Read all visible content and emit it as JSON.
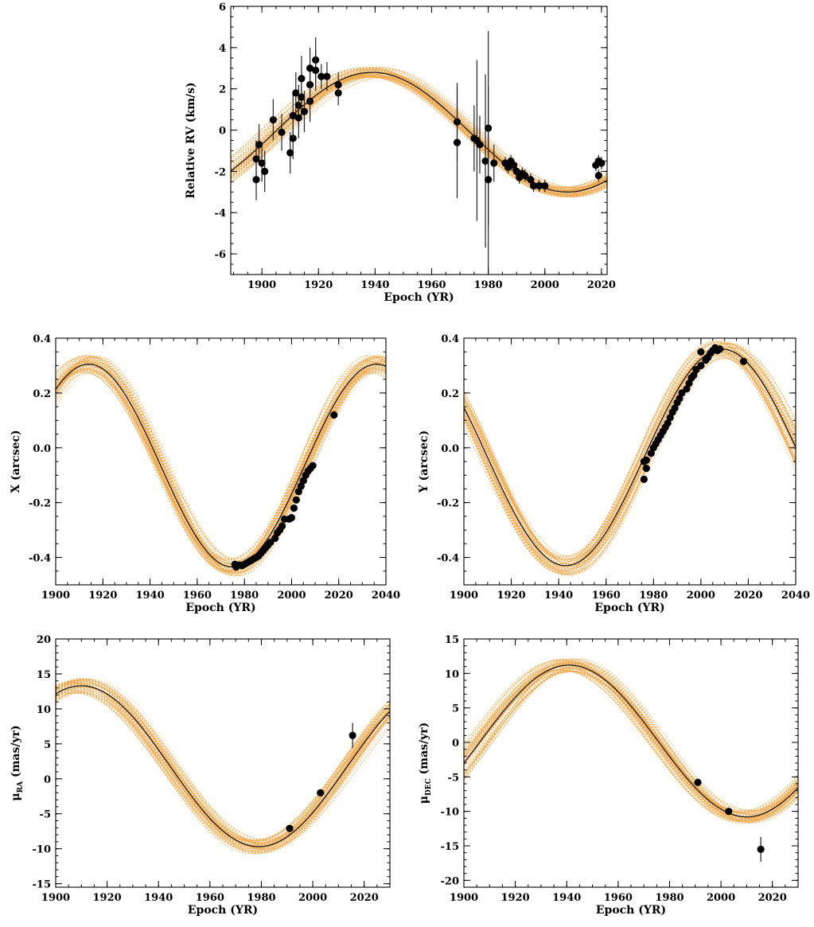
{
  "colors": {
    "mc_orbits": "#f0a13c",
    "best_fit": "#1a1a1a",
    "points": "#000000"
  },
  "chart_data": [
    {
      "id": "rv",
      "type": "scatter",
      "xlabel": "Epoch (YR)",
      "ylabel": "Relative RV (km/s)",
      "ylabel_sub": "",
      "xlim": [
        1889,
        2022
      ],
      "ylim": [
        -7,
        6
      ],
      "xticks": [
        1900,
        1920,
        1940,
        1960,
        1980,
        2000,
        2020
      ],
      "yticks": [
        -6,
        -4,
        -2,
        0,
        2,
        4,
        6
      ],
      "xminor": 5,
      "yminor": 0.5,
      "model": {
        "period": 138,
        "t_min": 2008,
        "amp_min": -3.0,
        "amp_max": 2.8,
        "slope_at_max": 0.0
      },
      "points": [
        {
          "x": 1898,
          "y": -2.4,
          "err": 1.0
        },
        {
          "x": 1898,
          "y": -1.4,
          "err": 0.9
        },
        {
          "x": 1899,
          "y": -0.7,
          "err": 1.0
        },
        {
          "x": 1900,
          "y": -1.6,
          "err": 0.9
        },
        {
          "x": 1901,
          "y": -2.0,
          "err": 1.0
        },
        {
          "x": 1904,
          "y": 0.5,
          "err": 1.0
        },
        {
          "x": 1907,
          "y": -0.1,
          "err": 0.9
        },
        {
          "x": 1910,
          "y": -1.1,
          "err": 1.0
        },
        {
          "x": 1911,
          "y": -0.4,
          "err": 1.0
        },
        {
          "x": 1911,
          "y": 0.7,
          "err": 1.1
        },
        {
          "x": 1912,
          "y": 1.8,
          "err": 1.0
        },
        {
          "x": 1913,
          "y": 1.2,
          "err": 1.0
        },
        {
          "x": 1913,
          "y": 0.6,
          "err": 1.0
        },
        {
          "x": 1914,
          "y": 2.5,
          "err": 1.1
        },
        {
          "x": 1914,
          "y": 1.6,
          "err": 1.0
        },
        {
          "x": 1915,
          "y": 0.9,
          "err": 1.0
        },
        {
          "x": 1917,
          "y": 1.4,
          "err": 1.0
        },
        {
          "x": 1917,
          "y": 2.2,
          "err": 1.0
        },
        {
          "x": 1917,
          "y": 3.0,
          "err": 1.0
        },
        {
          "x": 1919,
          "y": 3.4,
          "err": 1.1
        },
        {
          "x": 1919,
          "y": 2.9,
          "err": 1.0
        },
        {
          "x": 1921,
          "y": 2.6,
          "err": 0.6
        },
        {
          "x": 1923,
          "y": 2.6,
          "err": 0.7
        },
        {
          "x": 1927,
          "y": 1.8,
          "err": 0.6
        },
        {
          "x": 1927,
          "y": 2.2,
          "err": 0.6
        },
        {
          "x": 1969,
          "y": 0.4,
          "err": 1.9
        },
        {
          "x": 1969,
          "y": -0.6,
          "err": 2.7
        },
        {
          "x": 1975,
          "y": -0.4,
          "err": 1.6
        },
        {
          "x": 1976,
          "y": -0.5,
          "err": 3.9
        },
        {
          "x": 1977,
          "y": -0.7,
          "err": 1.4
        },
        {
          "x": 1979,
          "y": -1.5,
          "err": 4.2
        },
        {
          "x": 1980,
          "y": 0.1,
          "err": 4.7
        },
        {
          "x": 1980,
          "y": -2.4,
          "err": 4.5
        },
        {
          "x": 1982,
          "y": -1.6,
          "err": 0.9
        },
        {
          "x": 1986,
          "y": -1.6,
          "err": 0.3
        },
        {
          "x": 1987,
          "y": -1.8,
          "err": 0.3
        },
        {
          "x": 1988,
          "y": -1.5,
          "err": 0.3
        },
        {
          "x": 1989,
          "y": -1.7,
          "err": 0.3
        },
        {
          "x": 1990,
          "y": -2.0,
          "err": 0.3
        },
        {
          "x": 1991,
          "y": -2.3,
          "err": 0.3
        },
        {
          "x": 1992,
          "y": -2.1,
          "err": 0.3
        },
        {
          "x": 1993,
          "y": -2.2,
          "err": 0.3
        },
        {
          "x": 1995,
          "y": -2.4,
          "err": 0.3
        },
        {
          "x": 1996,
          "y": -2.7,
          "err": 0.3
        },
        {
          "x": 1998,
          "y": -2.7,
          "err": 0.3
        },
        {
          "x": 2000,
          "y": -2.7,
          "err": 0.3
        },
        {
          "x": 2018,
          "y": -1.7,
          "err": 0.3
        },
        {
          "x": 2019,
          "y": -1.5,
          "err": 0.3
        },
        {
          "x": 2019,
          "y": -2.2,
          "err": 0.3
        },
        {
          "x": 2020,
          "y": -1.6,
          "err": 0.3
        }
      ]
    },
    {
      "id": "x",
      "type": "scatter",
      "xlabel": "Epoch (YR)",
      "ylabel": "X (arcsec)",
      "ylabel_sub": "",
      "xlim": [
        1900,
        2040
      ],
      "ylim": [
        -0.5,
        0.4
      ],
      "xticks": [
        1900,
        1920,
        1940,
        1960,
        1980,
        2000,
        2020,
        2040
      ],
      "yticks": [
        -0.4,
        -0.2,
        0.0,
        0.2,
        0.4
      ],
      "xtick_labels": [
        "1900",
        "1920",
        "1940",
        "1960",
        "1980",
        "2000",
        "2020",
        "2040"
      ],
      "ytick_labels": [
        "-0.4",
        "-0.2",
        "0.0",
        "0.2",
        "0.4"
      ],
      "xminor": 5,
      "yminor": 0.05,
      "model": {
        "period": 122,
        "t_min": 1975,
        "amp_min": -0.435,
        "amp_max": 0.305
      },
      "points": [
        {
          "x": 1976,
          "y": -0.425
        },
        {
          "x": 1976.5,
          "y": -0.435
        },
        {
          "x": 1977,
          "y": -0.43
        },
        {
          "x": 1978,
          "y": -0.428
        },
        {
          "x": 1979,
          "y": -0.43
        },
        {
          "x": 1980,
          "y": -0.425
        },
        {
          "x": 1981,
          "y": -0.42
        },
        {
          "x": 1982,
          "y": -0.415
        },
        {
          "x": 1983,
          "y": -0.41
        },
        {
          "x": 1984,
          "y": -0.405
        },
        {
          "x": 1985,
          "y": -0.4
        },
        {
          "x": 1986,
          "y": -0.395
        },
        {
          "x": 1987,
          "y": -0.385
        },
        {
          "x": 1988,
          "y": -0.375
        },
        {
          "x": 1989,
          "y": -0.365
        },
        {
          "x": 1990,
          "y": -0.355
        },
        {
          "x": 1991,
          "y": -0.345
        },
        {
          "x": 1993,
          "y": -0.33
        },
        {
          "x": 1994,
          "y": -0.31
        },
        {
          "x": 1995,
          "y": -0.3
        },
        {
          "x": 1996,
          "y": -0.285
        },
        {
          "x": 1997,
          "y": -0.26
        },
        {
          "x": 1999,
          "y": -0.26
        },
        {
          "x": 2000,
          "y": -0.255
        },
        {
          "x": 2001,
          "y": -0.22
        },
        {
          "x": 2002,
          "y": -0.19
        },
        {
          "x": 2003,
          "y": -0.16
        },
        {
          "x": 2004,
          "y": -0.14
        },
        {
          "x": 2005,
          "y": -0.12
        },
        {
          "x": 2006,
          "y": -0.1
        },
        {
          "x": 2007,
          "y": -0.085
        },
        {
          "x": 2008,
          "y": -0.075
        },
        {
          "x": 2009,
          "y": -0.065
        },
        {
          "x": 2018,
          "y": 0.12
        }
      ]
    },
    {
      "id": "y",
      "type": "scatter",
      "xlabel": "Epoch (YR)",
      "ylabel": "Y (arcsec)",
      "ylabel_sub": "",
      "xlim": [
        1900,
        2040
      ],
      "ylim": [
        -0.5,
        0.4
      ],
      "xticks": [
        1900,
        1920,
        1940,
        1960,
        1980,
        2000,
        2020,
        2040
      ],
      "yticks": [
        -0.4,
        -0.2,
        0.0,
        0.2,
        0.4
      ],
      "xtick_labels": [
        "1900",
        "1920",
        "1940",
        "1960",
        "1980",
        "2000",
        "2020",
        "2040"
      ],
      "ytick_labels": [
        "-0.4",
        "-0.2",
        "0.0",
        "0.2",
        "0.4"
      ],
      "xminor": 5,
      "yminor": 0.05,
      "model": {
        "period": 132,
        "t_min": 1943,
        "amp_min": -0.43,
        "amp_max": 0.36
      },
      "points": [
        {
          "x": 1976,
          "y": -0.115
        },
        {
          "x": 1976,
          "y": -0.05
        },
        {
          "x": 1977,
          "y": -0.075
        },
        {
          "x": 1977,
          "y": -0.045
        },
        {
          "x": 1979,
          "y": -0.02
        },
        {
          "x": 1980,
          "y": 0.0
        },
        {
          "x": 1981,
          "y": 0.015
        },
        {
          "x": 1982,
          "y": 0.03
        },
        {
          "x": 1983,
          "y": 0.045
        },
        {
          "x": 1984,
          "y": 0.06
        },
        {
          "x": 1985,
          "y": 0.075
        },
        {
          "x": 1986,
          "y": 0.09
        },
        {
          "x": 1987,
          "y": 0.11
        },
        {
          "x": 1988,
          "y": 0.13
        },
        {
          "x": 1989,
          "y": 0.145
        },
        {
          "x": 1990,
          "y": 0.165
        },
        {
          "x": 1991,
          "y": 0.18
        },
        {
          "x": 1992,
          "y": 0.2
        },
        {
          "x": 1994,
          "y": 0.215
        },
        {
          "x": 1995,
          "y": 0.235
        },
        {
          "x": 1996,
          "y": 0.255
        },
        {
          "x": 1997,
          "y": 0.265
        },
        {
          "x": 1998,
          "y": 0.285
        },
        {
          "x": 2000,
          "y": 0.3
        },
        {
          "x": 2000,
          "y": 0.35
        },
        {
          "x": 2002,
          "y": 0.32
        },
        {
          "x": 2003,
          "y": 0.33
        },
        {
          "x": 2004,
          "y": 0.345
        },
        {
          "x": 2005,
          "y": 0.355
        },
        {
          "x": 2006,
          "y": 0.365
        },
        {
          "x": 2007,
          "y": 0.355
        },
        {
          "x": 2008,
          "y": 0.36
        },
        {
          "x": 2018,
          "y": 0.315
        }
      ]
    },
    {
      "id": "pmra",
      "type": "scatter",
      "xlabel": "Epoch (YR)",
      "ylabel": "μ",
      "ylabel_sub": "RA",
      "ylabel_units": " (mas/yr)",
      "xlim": [
        1900,
        2030
      ],
      "ylim": [
        -15.5,
        20
      ],
      "xticks": [
        1900,
        1920,
        1940,
        1960,
        1980,
        2000,
        2020
      ],
      "yticks": [
        -15,
        -10,
        -5,
        0,
        5,
        10,
        15,
        20
      ],
      "xminor": 5,
      "yminor": 1,
      "model": {
        "period": 138,
        "t_min": 1979,
        "amp_min": -9.7,
        "amp_max": 13.3
      },
      "points": [
        {
          "x": 1991,
          "y": -7.1,
          "err": 0.3
        },
        {
          "x": 2003,
          "y": -2.0,
          "err": 0.3
        },
        {
          "x": 2015.5,
          "y": 6.2,
          "err": 1.8
        }
      ]
    },
    {
      "id": "pmdec",
      "type": "scatter",
      "xlabel": "Epoch (YR)",
      "ylabel": "μ",
      "ylabel_sub": "DEC",
      "ylabel_units": " (mas/yr)",
      "xlim": [
        1900,
        2030
      ],
      "ylim": [
        -21,
        15
      ],
      "xticks": [
        1900,
        1920,
        1940,
        1960,
        1980,
        2000,
        2020
      ],
      "yticks": [
        -20,
        -15,
        -10,
        -5,
        0,
        5,
        10,
        15
      ],
      "xminor": 5,
      "yminor": 1,
      "model": {
        "period": 138,
        "t_min": 2010,
        "amp_min": -10.8,
        "amp_max": 11.2
      },
      "points": [
        {
          "x": 1991,
          "y": -5.8,
          "err": 0.3
        },
        {
          "x": 2003,
          "y": -10.0,
          "err": 0.3
        },
        {
          "x": 2015.5,
          "y": -15.5,
          "err": 1.8
        }
      ]
    }
  ]
}
